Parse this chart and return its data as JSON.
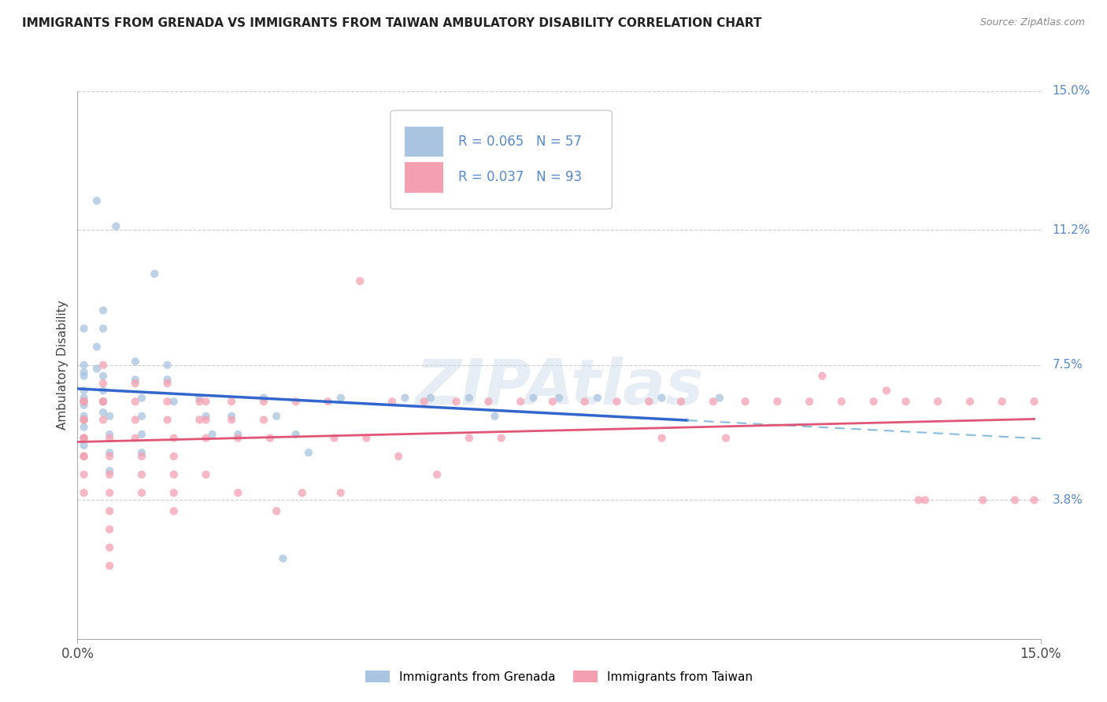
{
  "title": "IMMIGRANTS FROM GRENADA VS IMMIGRANTS FROM TAIWAN AMBULATORY DISABILITY CORRELATION CHART",
  "source": "Source: ZipAtlas.com",
  "ylabel_left": "Ambulatory Disability",
  "xlim": [
    0.0,
    0.15
  ],
  "ylim": [
    0.0,
    0.15
  ],
  "xtick_labels": [
    "0.0%",
    "15.0%"
  ],
  "ytick_right_vals": [
    0.038,
    0.075,
    0.112,
    0.15
  ],
  "ytick_right_labels": [
    "3.8%",
    "7.5%",
    "11.2%",
    "15.0%"
  ],
  "grenada_color": "#a8c4e0",
  "taiwan_color": "#f4a0b0",
  "grenada_line_color": "#3366cc",
  "taiwan_line_color": "#e05575",
  "dashed_line_color": "#88bbdd",
  "legend_grenada_R": "R = 0.065",
  "legend_grenada_N": "N = 57",
  "legend_taiwan_R": "R = 0.037",
  "legend_taiwan_N": "N = 93",
  "legend_label_grenada": "Immigrants from Grenada",
  "legend_label_taiwan": "Immigrants from Taiwan",
  "watermark": "ZIPAtlas",
  "title_fontsize": 11,
  "source_fontsize": 9,
  "axis_label_color": "#5588cc",
  "background_color": "#ffffff",
  "grenada_x": [
    0.003,
    0.006,
    0.012,
    0.014,
    0.004,
    0.004,
    0.003,
    0.003,
    0.001,
    0.001,
    0.001,
    0.001,
    0.001,
    0.001,
    0.001,
    0.001,
    0.001,
    0.001,
    0.001,
    0.001,
    0.001,
    0.004,
    0.004,
    0.004,
    0.004,
    0.005,
    0.005,
    0.005,
    0.005,
    0.009,
    0.009,
    0.01,
    0.01,
    0.01,
    0.01,
    0.014,
    0.015,
    0.019,
    0.02,
    0.021,
    0.024,
    0.025,
    0.029,
    0.031,
    0.032,
    0.034,
    0.036,
    0.041,
    0.051,
    0.055,
    0.061,
    0.065,
    0.071,
    0.075,
    0.081,
    0.091,
    0.1
  ],
  "grenada_y": [
    0.12,
    0.113,
    0.1,
    0.075,
    0.09,
    0.085,
    0.08,
    0.074,
    0.085,
    0.075,
    0.073,
    0.072,
    0.068,
    0.066,
    0.065,
    0.064,
    0.061,
    0.06,
    0.058,
    0.055,
    0.053,
    0.072,
    0.068,
    0.065,
    0.062,
    0.061,
    0.056,
    0.051,
    0.046,
    0.076,
    0.071,
    0.066,
    0.061,
    0.056,
    0.051,
    0.071,
    0.065,
    0.066,
    0.061,
    0.056,
    0.061,
    0.056,
    0.066,
    0.061,
    0.022,
    0.056,
    0.051,
    0.066,
    0.066,
    0.066,
    0.066,
    0.061,
    0.066,
    0.066,
    0.066,
    0.066,
    0.066
  ],
  "taiwan_x": [
    0.001,
    0.001,
    0.001,
    0.001,
    0.001,
    0.001,
    0.001,
    0.001,
    0.001,
    0.001,
    0.004,
    0.004,
    0.004,
    0.004,
    0.004,
    0.005,
    0.005,
    0.005,
    0.005,
    0.005,
    0.005,
    0.005,
    0.005,
    0.009,
    0.009,
    0.009,
    0.009,
    0.01,
    0.01,
    0.01,
    0.014,
    0.014,
    0.014,
    0.015,
    0.015,
    0.015,
    0.015,
    0.015,
    0.019,
    0.019,
    0.02,
    0.02,
    0.02,
    0.02,
    0.024,
    0.024,
    0.025,
    0.025,
    0.029,
    0.029,
    0.03,
    0.031,
    0.034,
    0.035,
    0.039,
    0.04,
    0.041,
    0.044,
    0.045,
    0.049,
    0.05,
    0.054,
    0.056,
    0.059,
    0.061,
    0.064,
    0.066,
    0.069,
    0.074,
    0.079,
    0.084,
    0.089,
    0.091,
    0.094,
    0.099,
    0.101,
    0.104,
    0.109,
    0.114,
    0.119,
    0.124,
    0.129,
    0.134,
    0.139,
    0.144,
    0.149,
    0.116,
    0.126,
    0.131,
    0.141,
    0.146,
    0.149,
    0.132
  ],
  "taiwan_y": [
    0.065,
    0.065,
    0.06,
    0.06,
    0.055,
    0.055,
    0.05,
    0.05,
    0.045,
    0.04,
    0.075,
    0.07,
    0.065,
    0.065,
    0.06,
    0.055,
    0.05,
    0.045,
    0.04,
    0.035,
    0.03,
    0.025,
    0.02,
    0.07,
    0.065,
    0.06,
    0.055,
    0.05,
    0.045,
    0.04,
    0.07,
    0.065,
    0.06,
    0.055,
    0.05,
    0.045,
    0.04,
    0.035,
    0.065,
    0.06,
    0.065,
    0.06,
    0.055,
    0.045,
    0.065,
    0.06,
    0.055,
    0.04,
    0.065,
    0.06,
    0.055,
    0.035,
    0.065,
    0.04,
    0.065,
    0.055,
    0.04,
    0.098,
    0.055,
    0.065,
    0.05,
    0.065,
    0.045,
    0.065,
    0.055,
    0.065,
    0.055,
    0.065,
    0.065,
    0.065,
    0.065,
    0.065,
    0.055,
    0.065,
    0.065,
    0.055,
    0.065,
    0.065,
    0.065,
    0.065,
    0.065,
    0.065,
    0.065,
    0.065,
    0.065,
    0.065,
    0.072,
    0.068,
    0.038,
    0.038,
    0.038,
    0.038,
    0.038
  ]
}
